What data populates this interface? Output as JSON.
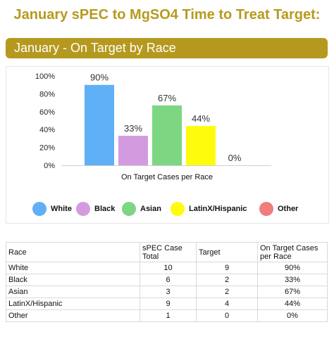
{
  "page_title": "January sPEC to MgSO4 Time to Treat Target:",
  "banner_label": "January - On Target by Race",
  "colors": {
    "accent_gold": "#B5991E",
    "title_gold": "#B79A1E"
  },
  "chart_data": {
    "type": "bar",
    "categories": [
      "White",
      "Black",
      "Asian",
      "LatinX/Hispanic",
      "Other"
    ],
    "series": [
      {
        "values": [
          90,
          33,
          67,
          44,
          0
        ],
        "colors": [
          "#5FB0F6",
          "#D29BE0",
          "#7DD682",
          "#FFFB0C",
          "#F07C7C"
        ],
        "data_labels": [
          "90%",
          "33%",
          "67%",
          "44%",
          "0%"
        ]
      }
    ],
    "xlabel": "On Target Cases per Race",
    "ylim": [
      0,
      100
    ],
    "yticks": [
      "0%",
      "20%",
      "40%",
      "60%",
      "80%",
      "100%"
    ],
    "legend_position": "bottom",
    "grid": false
  },
  "table": {
    "headers": [
      "Race",
      "sPEC Case Total",
      "Target",
      "On Target Cases per Race"
    ],
    "rows": [
      [
        "White",
        "10",
        "9",
        "90%"
      ],
      [
        "Black",
        "6",
        "2",
        "33%"
      ],
      [
        "Asian",
        "3",
        "2",
        "67%"
      ],
      [
        "LatinX/Hispanic",
        "9",
        "4",
        "44%"
      ],
      [
        "Other",
        "1",
        "0",
        "0%"
      ]
    ]
  }
}
